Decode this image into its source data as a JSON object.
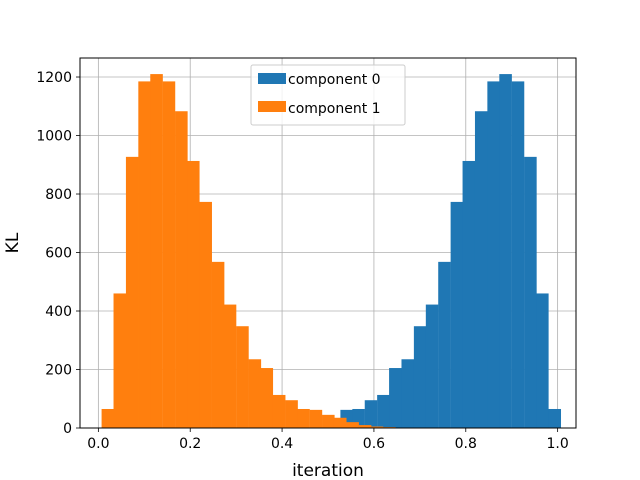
{
  "chart_data": {
    "type": "bar",
    "xlabel": "iteration",
    "ylabel": "KL",
    "xlim": [
      -0.04,
      1.04
    ],
    "ylim": [
      0,
      1265
    ],
    "xticks": [
      "0.0",
      "0.2",
      "0.4",
      "0.6",
      "0.8",
      "1.0"
    ],
    "yticks": [
      "0",
      "200",
      "400",
      "600",
      "800",
      "1000",
      "1200"
    ],
    "grid": true,
    "legend_position": "upper-center",
    "bin_width": 0.0267,
    "series": [
      {
        "name": "component 0",
        "color": "#1f77b4",
        "bin_starts": [
          0.5,
          0.527,
          0.553,
          0.58,
          0.607,
          0.633,
          0.66,
          0.687,
          0.713,
          0.74,
          0.767,
          0.793,
          0.82,
          0.847,
          0.873,
          0.9,
          0.927,
          0.953,
          0.98
        ],
        "values": [
          5,
          62,
          65,
          95,
          113,
          205,
          235,
          348,
          422,
          568,
          773,
          913,
          1083,
          1185,
          1210,
          1185,
          927,
          460,
          65
        ]
      },
      {
        "name": "component 1",
        "color": "#ff7f0e",
        "bin_starts": [
          0.007,
          0.033,
          0.06,
          0.087,
          0.113,
          0.14,
          0.167,
          0.193,
          0.22,
          0.247,
          0.273,
          0.3,
          0.327,
          0.353,
          0.38,
          0.407,
          0.433,
          0.46,
          0.487,
          0.513,
          0.54,
          0.567,
          0.593,
          0.62
        ],
        "values": [
          65,
          460,
          927,
          1185,
          1210,
          1185,
          1083,
          913,
          773,
          568,
          422,
          348,
          235,
          205,
          113,
          95,
          65,
          62,
          45,
          35,
          20,
          10,
          5,
          3
        ]
      }
    ]
  }
}
